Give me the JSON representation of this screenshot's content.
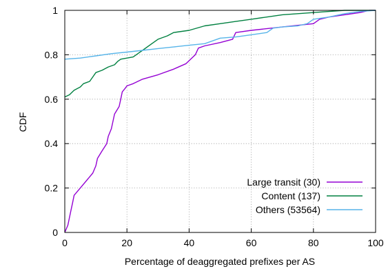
{
  "chart_data": {
    "type": "line",
    "xlabel": "Percentage of deaggregated prefixes per AS",
    "ylabel": "CDF",
    "xlim": [
      0,
      100
    ],
    "ylim": [
      0,
      1
    ],
    "xticks": [
      0,
      20,
      40,
      60,
      80,
      100
    ],
    "yticks": [
      0,
      0.2,
      0.4,
      0.6,
      0.8,
      1
    ],
    "xtick_labels": [
      "0",
      "20",
      "40",
      "60",
      "80",
      "100"
    ],
    "ytick_labels": [
      "0",
      "0.2",
      "0.4",
      "0.6",
      "0.8",
      "1"
    ],
    "grid": true,
    "legend_position": "bottom-right",
    "series": [
      {
        "name": "Large transit (30)",
        "color": "#9400d3",
        "x": [
          0,
          1,
          1.5,
          2,
          2.5,
          3,
          5,
          9,
          10,
          10.5,
          12,
          13.5,
          14,
          15,
          15.5,
          16,
          17.5,
          18,
          18.5,
          19.5,
          20,
          22,
          25,
          30,
          35,
          39,
          42,
          43,
          45,
          50,
          54,
          55,
          60,
          70,
          80,
          82,
          85,
          90,
          95,
          98,
          100
        ],
        "y": [
          0,
          0.033,
          0.067,
          0.1,
          0.133,
          0.167,
          0.2,
          0.267,
          0.3,
          0.333,
          0.367,
          0.4,
          0.433,
          0.467,
          0.5,
          0.533,
          0.567,
          0.6,
          0.633,
          0.65,
          0.66,
          0.67,
          0.69,
          0.71,
          0.735,
          0.76,
          0.8,
          0.83,
          0.84,
          0.855,
          0.87,
          0.9,
          0.91,
          0.925,
          0.94,
          0.96,
          0.97,
          0.98,
          0.99,
          1.0,
          1.0
        ]
      },
      {
        "name": "Content (137)",
        "color": "#008040",
        "x": [
          0,
          1.5,
          3,
          5,
          6,
          8,
          9,
          10,
          12,
          14,
          16,
          17,
          18,
          20,
          22,
          23,
          24,
          25,
          28,
          30,
          33,
          35,
          40,
          45,
          50,
          55,
          60,
          70,
          80,
          90,
          100
        ],
        "y": [
          0.61,
          0.62,
          0.64,
          0.655,
          0.67,
          0.68,
          0.7,
          0.72,
          0.73,
          0.745,
          0.755,
          0.77,
          0.78,
          0.785,
          0.79,
          0.8,
          0.81,
          0.82,
          0.85,
          0.87,
          0.885,
          0.9,
          0.91,
          0.93,
          0.94,
          0.95,
          0.96,
          0.98,
          0.99,
          1.0,
          1.0
        ]
      },
      {
        "name": "Others (53564)",
        "color": "#56b4e9",
        "x": [
          0,
          5,
          10,
          15,
          20,
          25,
          30,
          35,
          40,
          45,
          50,
          55,
          60,
          65,
          67,
          70,
          75,
          78,
          80,
          85,
          90,
          95,
          100
        ],
        "y": [
          0.78,
          0.785,
          0.795,
          0.805,
          0.812,
          0.82,
          0.828,
          0.835,
          0.843,
          0.85,
          0.875,
          0.88,
          0.89,
          0.9,
          0.92,
          0.925,
          0.93,
          0.94,
          0.96,
          0.97,
          0.985,
          0.995,
          1.0
        ]
      }
    ]
  }
}
